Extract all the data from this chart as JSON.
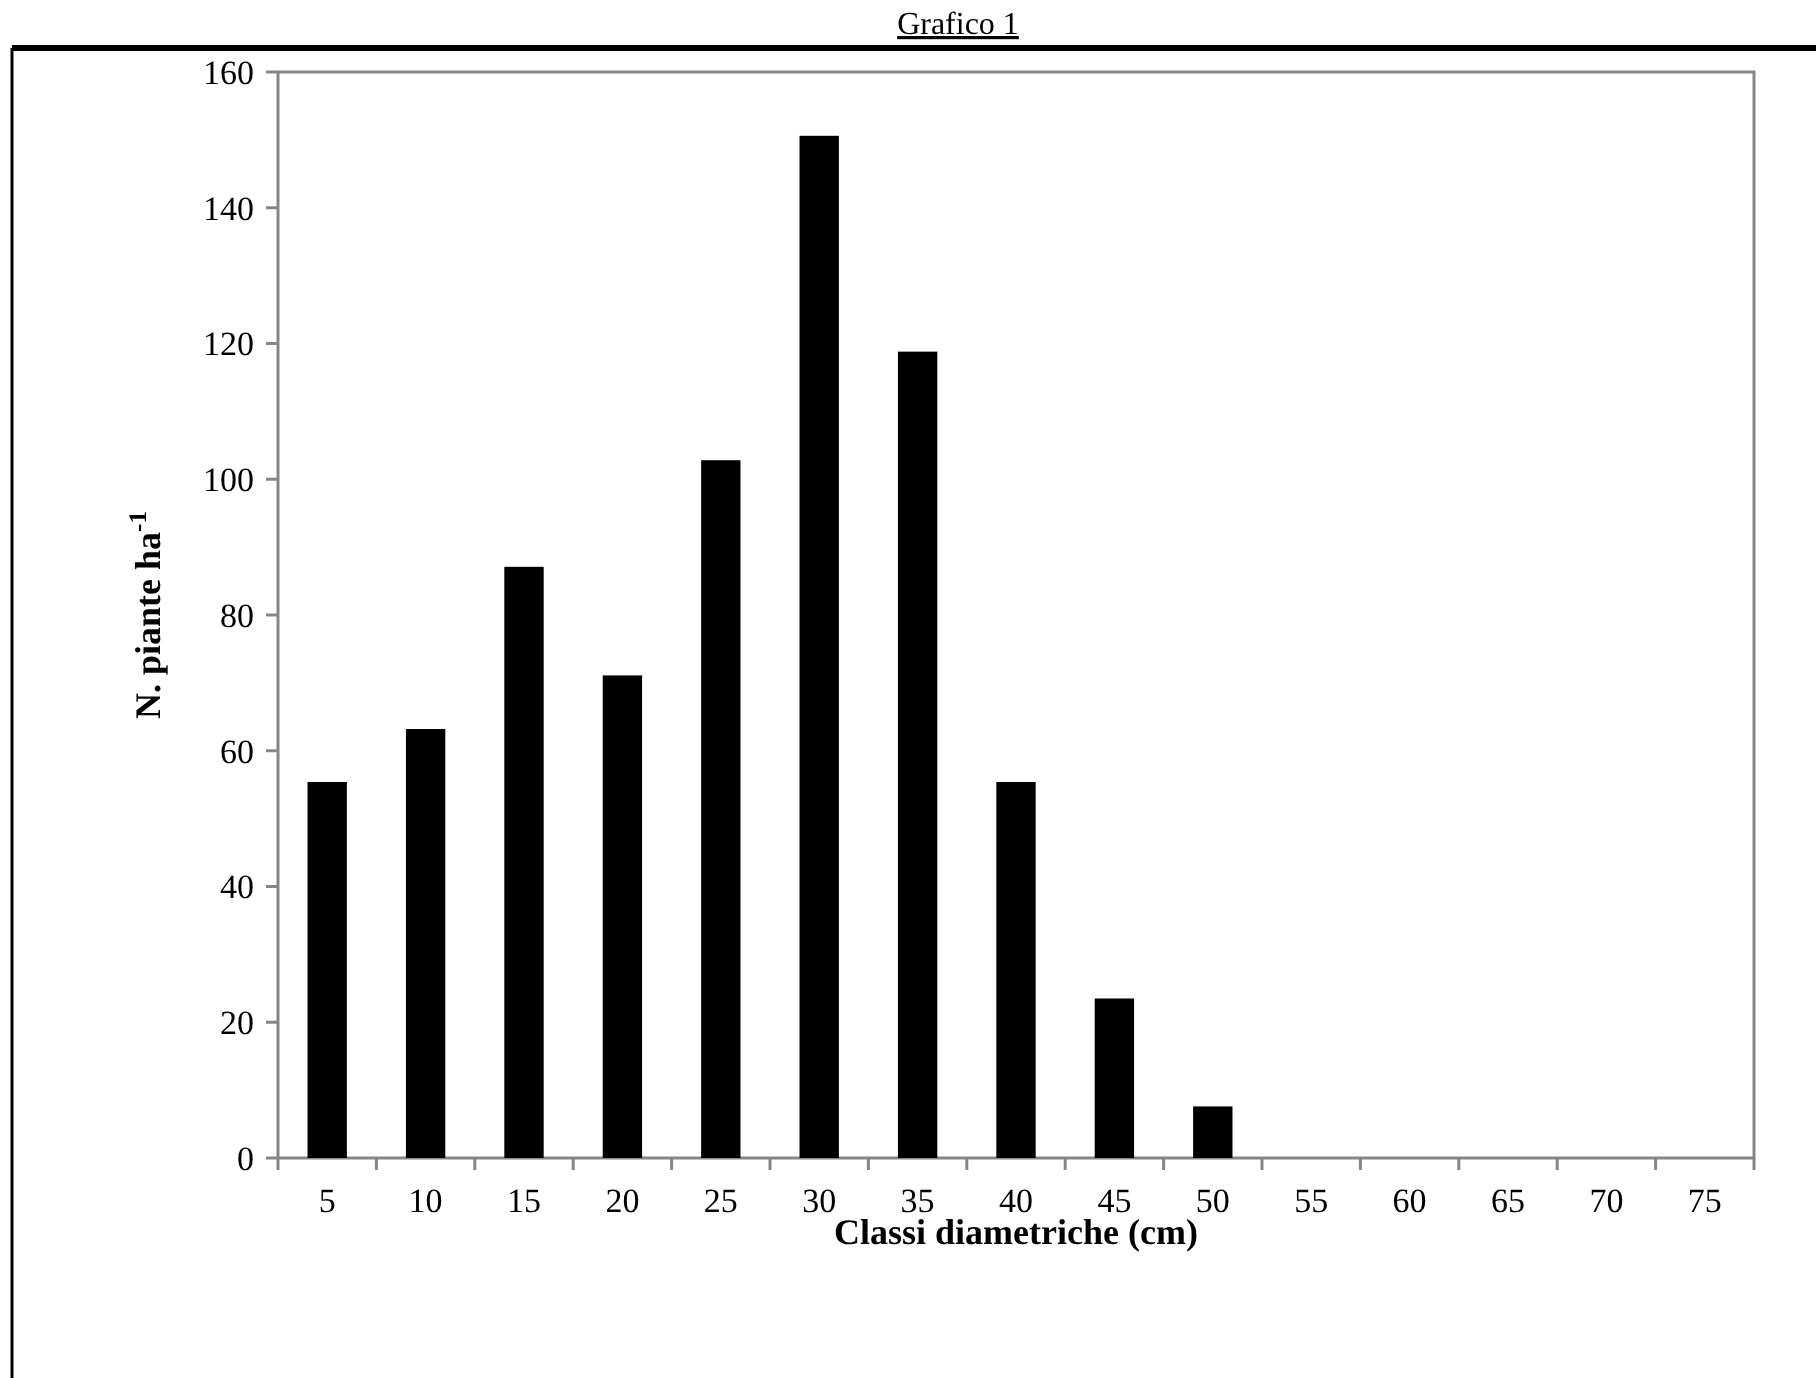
{
  "chart_data": {
    "type": "bar",
    "title": "Grafico 1",
    "xlabel": "Classi diametriche (cm)",
    "ylabel": "N. piante ha$^{-1}$",
    "categories": [
      "5",
      "10",
      "15",
      "20",
      "25",
      "30",
      "35",
      "40",
      "45",
      "50",
      "55",
      "60",
      "65",
      "70",
      "75"
    ],
    "values": [
      55.4,
      63.2,
      87.1,
      71.1,
      102.8,
      150.6,
      118.8,
      55.4,
      23.5,
      7.6,
      0,
      0,
      0,
      0,
      0
    ],
    "color": "#000000",
    "ylim": [
      0,
      160
    ],
    "yticks": [
      0,
      20,
      40,
      60,
      80,
      100,
      120,
      140,
      160
    ],
    "grid": false
  }
}
